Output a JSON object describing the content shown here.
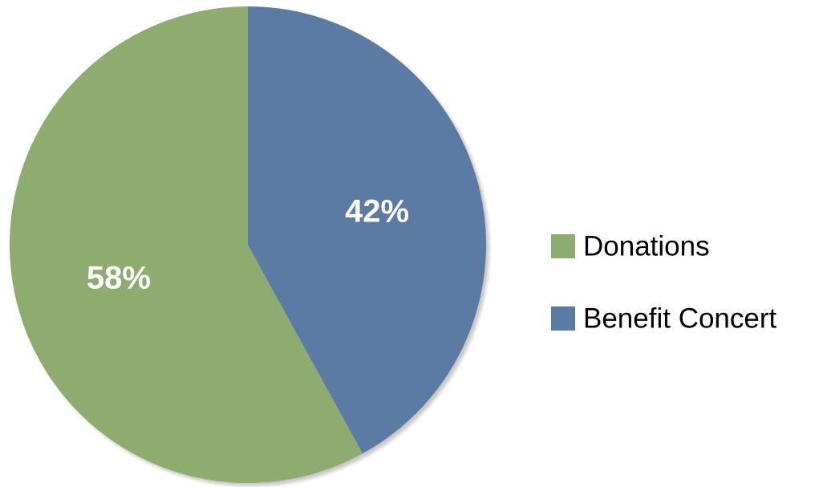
{
  "chart_data": {
    "type": "pie",
    "title": "",
    "slices": [
      {
        "label": "Donations",
        "value": 58,
        "value_label": "58%",
        "color": "#8fac70"
      },
      {
        "label": "Benefit Concert",
        "value": 42,
        "value_label": "42%",
        "color": "#5b7ba4"
      }
    ],
    "start_angle": "12 o'clock",
    "direction": "counterclockwise",
    "legend_position": "right"
  }
}
